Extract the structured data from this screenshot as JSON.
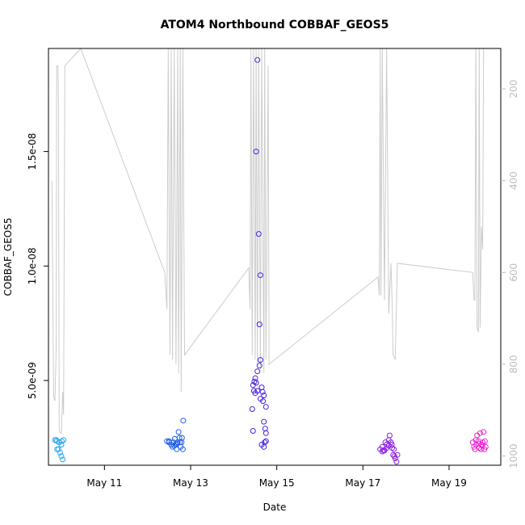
{
  "chart_data": {
    "type": "scatter",
    "title": "ATOM4 Northbound COBBAF_GEOS5",
    "xlabel": "Date",
    "ylabel": "COBBAF_GEOS5",
    "x_ticks": [
      {
        "label": "May 11",
        "day": 11
      },
      {
        "label": "May 13",
        "day": 13
      },
      {
        "label": "May 15",
        "day": 15
      },
      {
        "label": "May 17",
        "day": 17
      },
      {
        "label": "May 19",
        "day": 19
      }
    ],
    "xlim_days": [
      9.7,
      20.2
    ],
    "ylim": [
      1.3e-09,
      1.95e-08
    ],
    "y_ticks": [
      {
        "label": "5.0e-09",
        "value": 5e-09
      },
      {
        "label": "1.0e-08",
        "value": 1e-08
      },
      {
        "label": "1.5e-08",
        "value": 1.5e-08
      }
    ],
    "y2_ticks": [
      {
        "label": "200",
        "value": 200
      },
      {
        "label": "400",
        "value": 400
      },
      {
        "label": "600",
        "value": 600
      },
      {
        "label": "800",
        "value": 800
      },
      {
        "label": "1000",
        "value": 1000
      }
    ],
    "y2lim": [
      1020,
      112
    ],
    "y2_reversed": true,
    "line_color": "#cccccc",
    "series": [
      {
        "color": "#2aa6ec",
        "points": [
          [
            9.85,
            2.4e-09
          ],
          [
            9.88,
            2.4e-09
          ],
          [
            9.9,
            2e-09
          ],
          [
            9.93,
            2e-09
          ],
          [
            9.95,
            2.3e-09
          ],
          [
            9.97,
            1.85e-09
          ],
          [
            10.0,
            2.2e-09
          ],
          [
            10.0,
            1.7e-09
          ],
          [
            10.03,
            1.55e-09
          ],
          [
            10.05,
            2.4e-09
          ],
          [
            9.9,
            2.35e-09
          ],
          [
            10.01,
            2.35e-09
          ]
        ]
      },
      {
        "color": "#1e5ee8",
        "points": [
          [
            12.45,
            2.35e-09
          ],
          [
            12.5,
            2.3e-09
          ],
          [
            12.55,
            2.2e-09
          ],
          [
            12.58,
            2.1e-09
          ],
          [
            12.6,
            2.3e-09
          ],
          [
            12.63,
            2.45e-09
          ],
          [
            12.65,
            2.2e-09
          ],
          [
            12.68,
            2e-09
          ],
          [
            12.7,
            2.3e-09
          ],
          [
            12.72,
            2.75e-09
          ],
          [
            12.75,
            2.3e-09
          ],
          [
            12.77,
            2.1e-09
          ],
          [
            12.8,
            2.5e-09
          ],
          [
            12.82,
            2e-09
          ],
          [
            12.83,
            3.25e-09
          ],
          [
            12.5,
            2.35e-09
          ],
          [
            12.62,
            2.15e-09
          ],
          [
            12.68,
            2.25e-09
          ],
          [
            12.74,
            2.5e-09
          ],
          [
            12.79,
            2.3e-09
          ]
        ]
      },
      {
        "color": "#4a1fe0",
        "points": [
          [
            14.55,
            1.9e-08
          ],
          [
            14.52,
            1.5e-08
          ],
          [
            14.58,
            1.14e-08
          ],
          [
            14.62,
            9.6e-09
          ],
          [
            14.6,
            7.45e-09
          ],
          [
            14.62,
            5.9e-09
          ],
          [
            14.6,
            5.65e-09
          ],
          [
            14.55,
            5.4e-09
          ],
          [
            14.5,
            5.1e-09
          ],
          [
            14.48,
            4.95e-09
          ],
          [
            14.52,
            4.9e-09
          ],
          [
            14.45,
            4.8e-09
          ],
          [
            14.47,
            4.55e-09
          ],
          [
            14.55,
            4.55e-09
          ],
          [
            14.5,
            4.45e-09
          ],
          [
            14.65,
            4.7e-09
          ],
          [
            14.67,
            4.5e-09
          ],
          [
            14.7,
            4.35e-09
          ],
          [
            14.68,
            4.1e-09
          ],
          [
            14.62,
            4.2e-09
          ],
          [
            14.43,
            3.75e-09
          ],
          [
            14.75,
            3.85e-09
          ],
          [
            14.7,
            3.2e-09
          ],
          [
            14.73,
            2.9e-09
          ],
          [
            14.75,
            2.7e-09
          ],
          [
            14.45,
            2.8e-09
          ],
          [
            14.65,
            2.2e-09
          ],
          [
            14.7,
            2.1e-09
          ],
          [
            14.75,
            2.35e-09
          ],
          [
            14.72,
            2.3e-09
          ]
        ]
      },
      {
        "color": "#8a1fe0",
        "points": [
          [
            17.4,
            2e-09
          ],
          [
            17.45,
            2.1e-09
          ],
          [
            17.5,
            1.95e-09
          ],
          [
            17.55,
            2.2e-09
          ],
          [
            17.6,
            2.4e-09
          ],
          [
            17.62,
            2.6e-09
          ],
          [
            17.65,
            2.3e-09
          ],
          [
            17.68,
            2.05e-09
          ],
          [
            17.7,
            1.75e-09
          ],
          [
            17.72,
            2e-09
          ],
          [
            17.75,
            1.6e-09
          ],
          [
            17.78,
            1.45e-09
          ],
          [
            17.8,
            1.75e-09
          ],
          [
            17.45,
            1.9e-09
          ],
          [
            17.55,
            2.05e-09
          ],
          [
            17.6,
            2.15e-09
          ],
          [
            17.67,
            2.2e-09
          ],
          [
            17.73,
            1.7e-09
          ],
          [
            17.52,
            2.3e-09
          ],
          [
            17.48,
            1.95e-09
          ]
        ]
      },
      {
        "color": "#ee1fcf",
        "points": [
          [
            19.55,
            2.3e-09
          ],
          [
            19.58,
            2.1e-09
          ],
          [
            19.6,
            2e-09
          ],
          [
            19.63,
            2.2e-09
          ],
          [
            19.65,
            2.6e-09
          ],
          [
            19.68,
            2.35e-09
          ],
          [
            19.7,
            2.05e-09
          ],
          [
            19.72,
            2.7e-09
          ],
          [
            19.75,
            2.2e-09
          ],
          [
            19.78,
            2.3e-09
          ],
          [
            19.8,
            2.75e-09
          ],
          [
            19.82,
            2e-09
          ],
          [
            19.85,
            2.1e-09
          ],
          [
            19.62,
            2.4e-09
          ],
          [
            19.74,
            2e-09
          ],
          [
            19.69,
            2.25e-09
          ],
          [
            19.77,
            2.15e-09
          ],
          [
            19.83,
            2.35e-09
          ]
        ]
      }
    ],
    "altitude_line": [
      [
        9.78,
        400
      ],
      [
        9.82,
        870
      ],
      [
        9.85,
        880
      ],
      [
        9.87,
        800
      ],
      [
        9.88,
        750
      ],
      [
        9.89,
        150
      ],
      [
        9.92,
        150
      ],
      [
        9.93,
        220
      ],
      [
        9.95,
        940
      ],
      [
        9.97,
        950
      ],
      [
        10.0,
        950
      ],
      [
        10.03,
        860
      ],
      [
        10.05,
        910
      ],
      [
        10.08,
        150
      ],
      [
        10.45,
        112
      ],
      [
        12.4,
        600
      ],
      [
        12.45,
        680
      ],
      [
        12.48,
        112
      ],
      [
        12.52,
        780
      ],
      [
        12.55,
        112
      ],
      [
        12.58,
        790
      ],
      [
        12.62,
        112
      ],
      [
        12.66,
        800
      ],
      [
        12.7,
        112
      ],
      [
        12.72,
        820
      ],
      [
        12.76,
        112
      ],
      [
        12.78,
        860
      ],
      [
        12.82,
        112
      ],
      [
        12.86,
        780
      ],
      [
        14.35,
        590
      ],
      [
        14.38,
        680
      ],
      [
        14.4,
        112
      ],
      [
        14.43,
        780
      ],
      [
        14.46,
        112
      ],
      [
        14.5,
        790
      ],
      [
        14.52,
        112
      ],
      [
        14.55,
        800
      ],
      [
        14.58,
        112
      ],
      [
        14.62,
        810
      ],
      [
        14.65,
        112
      ],
      [
        14.7,
        820
      ],
      [
        14.72,
        112
      ],
      [
        14.75,
        790
      ],
      [
        14.8,
        150
      ],
      [
        14.82,
        800
      ],
      [
        17.35,
        610
      ],
      [
        17.38,
        650
      ],
      [
        17.4,
        112
      ],
      [
        17.42,
        650
      ],
      [
        17.45,
        112
      ],
      [
        17.5,
        660
      ],
      [
        17.55,
        112
      ],
      [
        17.6,
        690
      ],
      [
        17.65,
        580
      ],
      [
        17.68,
        670
      ],
      [
        17.7,
        780
      ],
      [
        17.75,
        790
      ],
      [
        17.8,
        580
      ],
      [
        19.55,
        600
      ],
      [
        19.58,
        660
      ],
      [
        19.6,
        660
      ],
      [
        19.62,
        112
      ],
      [
        19.65,
        720
      ],
      [
        19.68,
        730
      ],
      [
        19.7,
        112
      ],
      [
        19.72,
        720
      ],
      [
        19.75,
        500
      ],
      [
        19.78,
        550
      ],
      [
        19.8,
        112
      ]
    ]
  }
}
